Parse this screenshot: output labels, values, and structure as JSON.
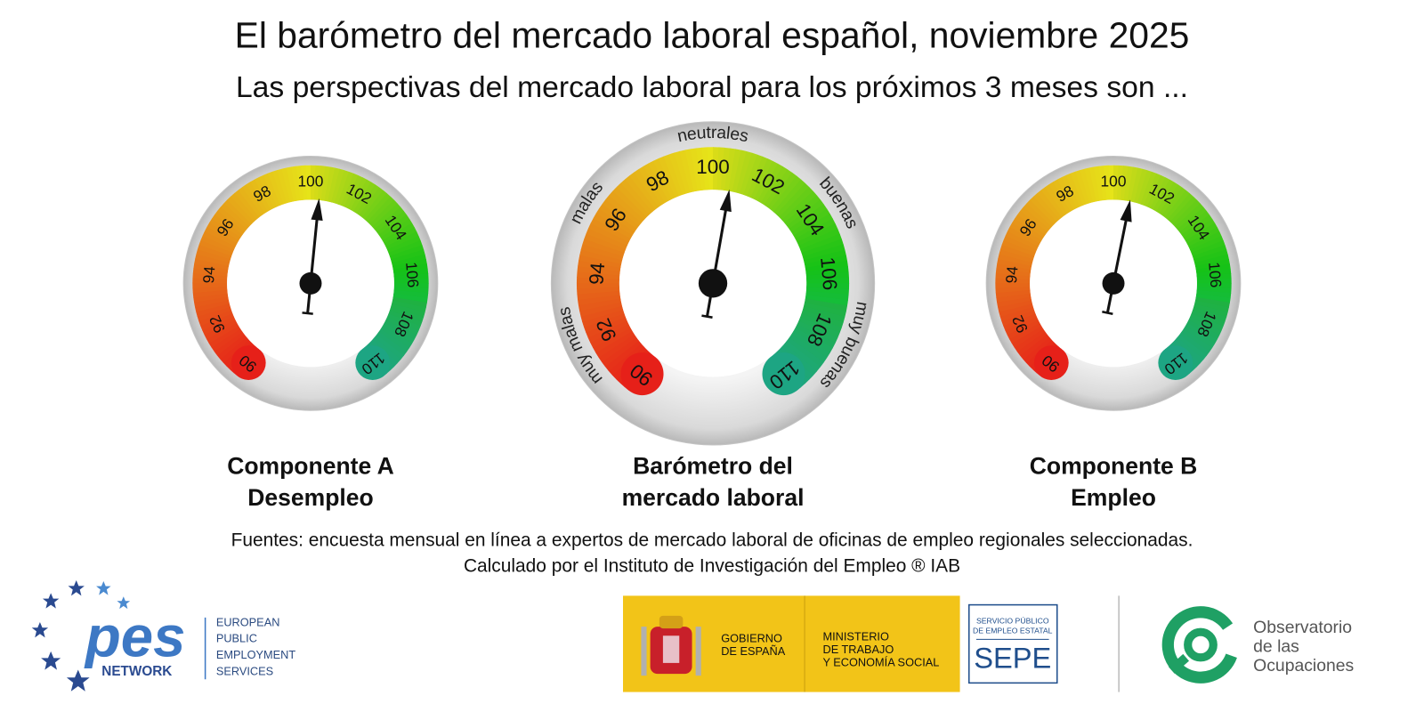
{
  "header": {
    "title": "El barómetro del mercado laboral español, noviembre 2025",
    "subtitle": "Las perspectivas del mercado laboral para los próximos 3 meses son ..."
  },
  "chart_data": [
    {
      "type": "gauge",
      "title": [
        "Componente A",
        "Desempleo"
      ],
      "range": [
        90,
        110
      ],
      "ticks": [
        90,
        92,
        94,
        96,
        98,
        100,
        102,
        104,
        106,
        108,
        110
      ],
      "value": 100.4
    },
    {
      "type": "gauge",
      "title": [
        "Barómetro del",
        "mercado laboral"
      ],
      "range": [
        90,
        110
      ],
      "ticks": [
        90,
        92,
        94,
        96,
        98,
        100,
        102,
        104,
        106,
        108,
        110
      ],
      "zones": [
        "muy malas",
        "malas",
        "neutrales",
        "buenas",
        "muy buenas"
      ],
      "value": 100.7
    },
    {
      "type": "gauge",
      "title": [
        "Componente B",
        "Empleo"
      ],
      "range": [
        90,
        110
      ],
      "ticks": [
        90,
        92,
        94,
        96,
        98,
        100,
        102,
        104,
        106,
        108,
        110
      ],
      "value": 100.8
    }
  ],
  "footer": {
    "sources": "Fuentes: encuesta mensual en línea a expertos de mercado laboral de oficinas de empleo regionales seleccionadas.",
    "credit": "Calculado por el Instituto de Investigación del Empleo ® IAB"
  },
  "logos": {
    "pes": {
      "mark": "pes",
      "network": "NETWORK",
      "lines": [
        "EUROPEAN",
        "PUBLIC",
        "EMPLOYMENT",
        "SERVICES"
      ]
    },
    "gobierno": [
      "GOBIERNO",
      "DE ESPAÑA"
    ],
    "ministerio": [
      "MINISTERIO",
      "DE TRABAJO",
      "Y ECONOMÍA SOCIAL"
    ],
    "sepe": {
      "lines": [
        "SERVICIO PÚBLICO",
        "DE EMPLEO ESTATAL"
      ],
      "name": "SEPE"
    },
    "observatorio": [
      "Observatorio",
      "de las",
      "Ocupaciones"
    ]
  }
}
